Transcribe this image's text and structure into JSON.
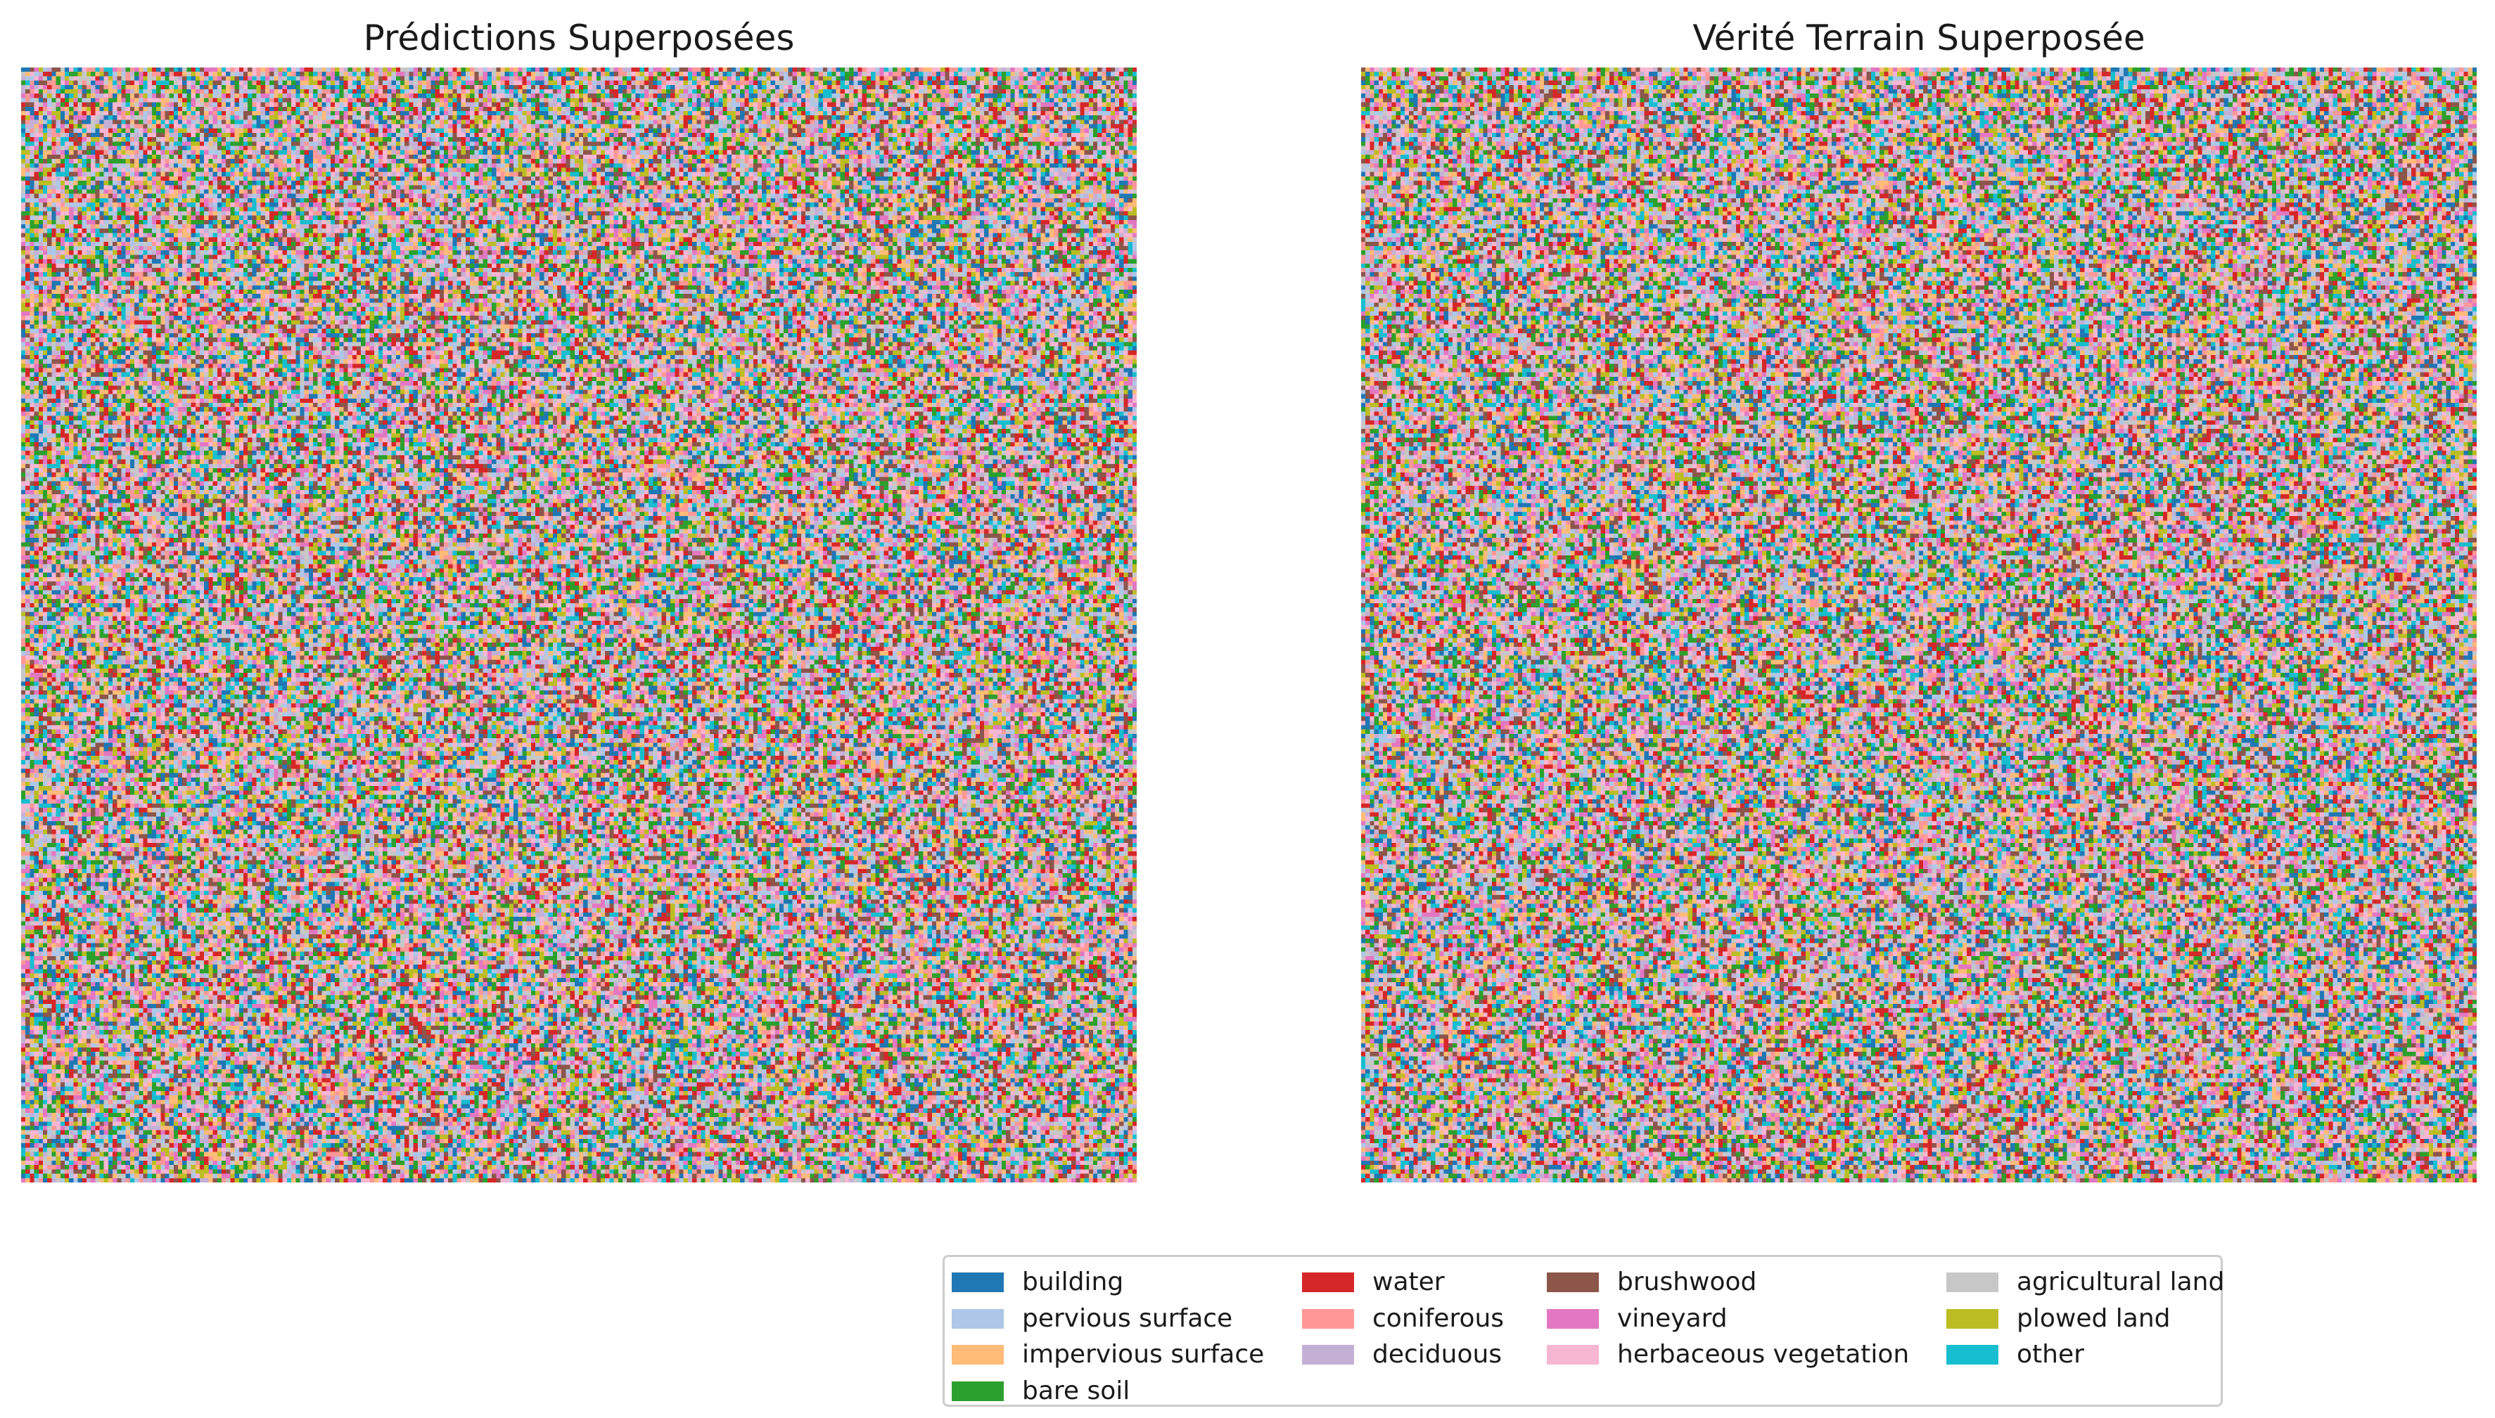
{
  "panels": [
    {
      "title": "Prédictions Superposées"
    },
    {
      "title": "Vérité Terrain Superposée"
    }
  ],
  "legend": {
    "columns": [
      [
        {
          "label": "building",
          "color": "#1f77b4"
        },
        {
          "label": "pervious surface",
          "color": "#aec7e8"
        },
        {
          "label": "impervious surface",
          "color": "#ffbb78"
        },
        {
          "label": "bare soil",
          "color": "#2ca02c"
        }
      ],
      [
        {
          "label": "water",
          "color": "#d62728"
        },
        {
          "label": "coniferous",
          "color": "#ff9896"
        },
        {
          "label": "deciduous",
          "color": "#c5b0d5"
        }
      ],
      [
        {
          "label": "brushwood",
          "color": "#8c564b"
        },
        {
          "label": "vineyard",
          "color": "#e377c2"
        },
        {
          "label": "herbaceous vegetation",
          "color": "#f7b6d2"
        }
      ],
      [
        {
          "label": "agricultural land",
          "color": "#c7c7c7"
        },
        {
          "label": "plowed land",
          "color": "#bcbd22"
        },
        {
          "label": "other",
          "color": "#17becf"
        }
      ]
    ]
  }
}
